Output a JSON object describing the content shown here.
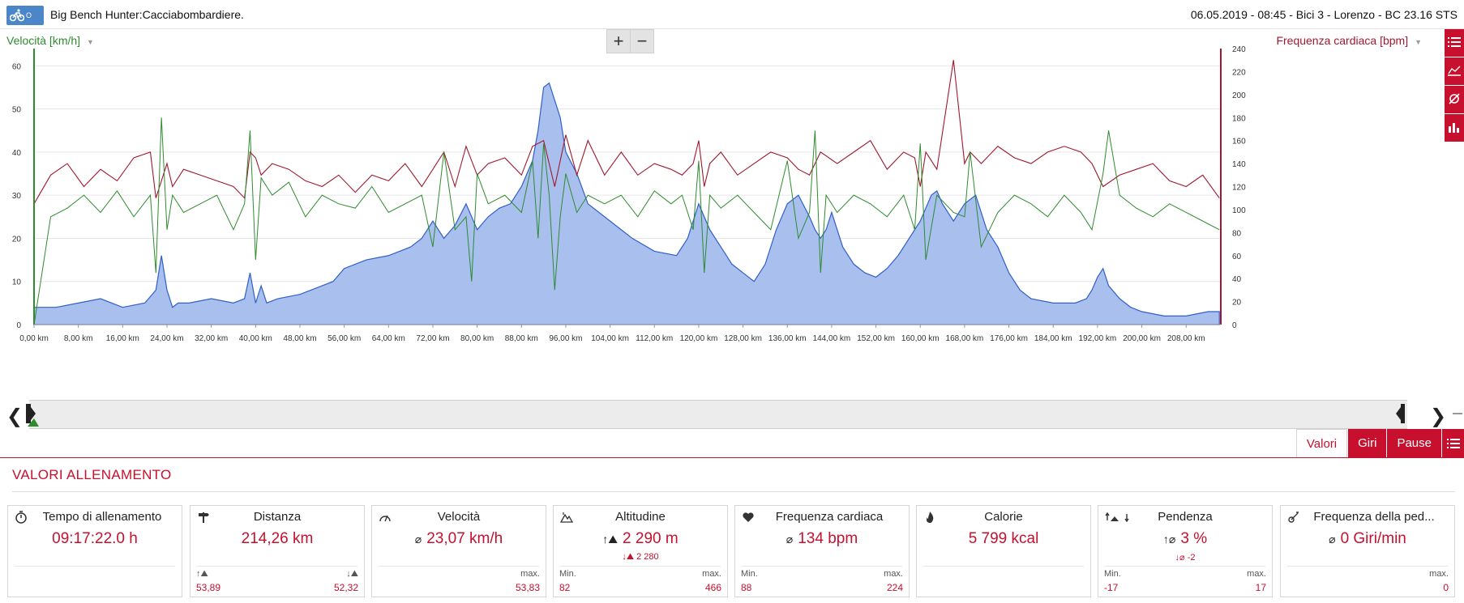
{
  "header": {
    "logo_text": "O RDB",
    "title": "Big Bench Hunter:Cacciabombardiere.",
    "meta": "06.05.2019  -  08:45  -  Bici 3  -  Lorenzo  -  BC 23.16 STS"
  },
  "chart": {
    "left_axis_title": "Velocità [km/h]",
    "right_axis_title": "Frequenza cardiaca [bpm]",
    "zoom_in": "+",
    "zoom_out": "−"
  },
  "chart_data": {
    "type": "line",
    "title": "",
    "xlabel": "",
    "x_unit": "km",
    "x_ticks": [
      "0,00 km",
      "8,00 km",
      "16,00 km",
      "24,00 km",
      "32,00 km",
      "40,00 km",
      "48,00 km",
      "56,00 km",
      "64,00 km",
      "72,00 km",
      "80,00 km",
      "88,00 km",
      "96,00 km",
      "104,00 km",
      "112,00 km",
      "120,00 km",
      "128,00 km",
      "136,00 km",
      "144,00 km",
      "152,00 km",
      "160,00 km",
      "168,00 km",
      "176,00 km",
      "184,00 km",
      "192,00 km",
      "200,00 km",
      "208,00 km"
    ],
    "xlim": [
      0,
      214.26
    ],
    "left_yticks": [
      "0",
      "10",
      "20",
      "30",
      "40",
      "50",
      "60"
    ],
    "left_ylim": [
      0,
      64
    ],
    "right_yticks": [
      "0",
      "20",
      "40",
      "60",
      "80",
      "100",
      "120",
      "140",
      "160",
      "180",
      "200",
      "220",
      "240"
    ],
    "right_ylim": [
      0,
      240
    ],
    "grid": true,
    "colors": {
      "speed": "#2e8b2e",
      "heart_rate": "#a0182e",
      "altitude_fill": "#a9c0ef",
      "altitude_line": "#2f5fc7"
    },
    "series": [
      {
        "name": "Velocità",
        "axis": "left",
        "x": [
          0,
          3,
          6,
          9,
          12,
          15,
          18,
          21,
          22,
          23,
          24,
          25,
          27,
          30,
          33,
          36,
          38,
          39,
          40,
          41,
          43,
          46,
          49,
          52,
          55,
          58,
          61,
          64,
          67,
          70,
          72,
          74,
          76,
          78,
          79,
          80,
          82,
          85,
          88,
          90,
          91,
          92,
          93,
          94,
          95,
          96,
          98,
          100,
          103,
          106,
          109,
          112,
          115,
          117,
          119,
          120,
          121,
          122,
          124,
          127,
          130,
          133,
          136,
          138,
          140,
          141,
          142,
          143,
          145,
          148,
          151,
          154,
          157,
          159,
          160,
          161,
          163,
          166,
          168,
          169,
          171,
          174,
          177,
          180,
          183,
          186,
          189,
          191,
          193,
          194,
          196,
          199,
          202,
          205,
          208,
          211,
          214
        ],
        "values": [
          0,
          25,
          27,
          30,
          26,
          31,
          25,
          30,
          12,
          48,
          22,
          30,
          26,
          28,
          30,
          22,
          28,
          45,
          15,
          34,
          30,
          33,
          25,
          30,
          28,
          27,
          32,
          26,
          28,
          30,
          18,
          40,
          22,
          25,
          10,
          35,
          28,
          30,
          26,
          38,
          20,
          42,
          30,
          8,
          25,
          35,
          26,
          30,
          28,
          30,
          25,
          31,
          28,
          30,
          22,
          38,
          12,
          30,
          27,
          30,
          26,
          22,
          38,
          20,
          26,
          45,
          12,
          30,
          26,
          30,
          28,
          25,
          30,
          22,
          42,
          15,
          30,
          26,
          25,
          40,
          18,
          26,
          30,
          28,
          25,
          30,
          26,
          22,
          35,
          45,
          30,
          27,
          25,
          28,
          26,
          24,
          22
        ]
      },
      {
        "name": "Frequenza cardiaca",
        "axis": "right",
        "x": [
          0,
          3,
          6,
          9,
          12,
          15,
          18,
          21,
          22,
          24,
          25,
          27,
          30,
          33,
          36,
          38,
          39,
          40,
          41,
          43,
          46,
          49,
          52,
          55,
          58,
          61,
          64,
          67,
          70,
          72,
          74,
          76,
          78,
          80,
          82,
          85,
          88,
          90,
          92,
          94,
          96,
          98,
          100,
          103,
          106,
          109,
          112,
          115,
          117,
          119,
          120,
          121,
          122,
          124,
          127,
          130,
          133,
          136,
          138,
          140,
          142,
          145,
          148,
          151,
          154,
          157,
          159,
          160,
          161,
          163,
          166,
          168,
          169,
          171,
          174,
          177,
          180,
          183,
          186,
          189,
          191,
          193,
          196,
          199,
          202,
          205,
          208,
          211,
          214
        ],
        "values": [
          105,
          130,
          140,
          120,
          135,
          125,
          145,
          150,
          110,
          140,
          120,
          135,
          130,
          125,
          120,
          110,
          150,
          145,
          130,
          140,
          135,
          125,
          120,
          130,
          115,
          130,
          125,
          140,
          120,
          135,
          150,
          120,
          155,
          130,
          140,
          145,
          130,
          155,
          160,
          120,
          165,
          130,
          160,
          130,
          150,
          130,
          140,
          135,
          130,
          140,
          160,
          120,
          140,
          150,
          130,
          140,
          150,
          145,
          135,
          130,
          150,
          140,
          150,
          160,
          135,
          150,
          145,
          120,
          150,
          135,
          230,
          140,
          150,
          140,
          155,
          145,
          140,
          150,
          155,
          150,
          140,
          120,
          130,
          135,
          140,
          125,
          120,
          130,
          110
        ]
      },
      {
        "name": "Altitudine",
        "axis": "left_scaled",
        "x": [
          0,
          4,
          8,
          12,
          16,
          20,
          22,
          23,
          24,
          25,
          26,
          28,
          32,
          36,
          38,
          39,
          40,
          41,
          42,
          44,
          48,
          52,
          54,
          56,
          60,
          64,
          68,
          70,
          72,
          74,
          76,
          78,
          80,
          82,
          84,
          86,
          88,
          90,
          91,
          92,
          93,
          94,
          95,
          96,
          98,
          100,
          104,
          108,
          112,
          116,
          118,
          120,
          122,
          124,
          126,
          128,
          130,
          132,
          134,
          136,
          138,
          140,
          141,
          142,
          143,
          144,
          146,
          148,
          150,
          152,
          154,
          156,
          158,
          160,
          162,
          163,
          164,
          166,
          168,
          170,
          172,
          174,
          176,
          178,
          180,
          184,
          188,
          190,
          191,
          192,
          193,
          194,
          196,
          198,
          200,
          204,
          208,
          212,
          214
        ],
        "values": [
          4,
          4,
          5,
          6,
          4,
          5,
          8,
          16,
          8,
          4,
          5,
          5,
          6,
          5,
          6,
          12,
          5,
          9,
          5,
          6,
          7,
          9,
          10,
          13,
          15,
          16,
          18,
          20,
          24,
          20,
          23,
          28,
          22,
          25,
          27,
          28,
          32,
          38,
          45,
          55,
          56,
          52,
          48,
          40,
          35,
          28,
          24,
          20,
          17,
          16,
          20,
          28,
          22,
          18,
          14,
          12,
          10,
          14,
          22,
          28,
          30,
          25,
          22,
          20,
          22,
          26,
          18,
          14,
          12,
          11,
          13,
          16,
          20,
          24,
          30,
          31,
          28,
          24,
          28,
          30,
          22,
          18,
          12,
          8,
          6,
          5,
          5,
          6,
          8,
          11,
          13,
          9,
          6,
          4,
          3,
          2,
          2,
          3,
          3
        ]
      }
    ]
  },
  "scrubber": {
    "left_arrow": "❮",
    "right_arrow": "❯"
  },
  "tabs": [
    {
      "label": "Valori",
      "active": true
    },
    {
      "label": "Giri",
      "active": false
    },
    {
      "label": "Pause",
      "active": false
    }
  ],
  "section": {
    "title": "VALORI ALLENAMENTO"
  },
  "cards": [
    {
      "label": "Tempo di allenamento",
      "icon": "stopwatch-icon",
      "value": "09:17:22.0 h",
      "sub": "",
      "foot_left_label": "",
      "foot_right_label": "",
      "foot_left": "",
      "foot_right": ""
    },
    {
      "label": "Distanza",
      "icon": "signpost-icon",
      "value": "214,26 km",
      "sub": "",
      "foot_left_label": "↑⛰",
      "foot_right_label": "↓⛰",
      "foot_left": "53,89",
      "foot_right": "52,32"
    },
    {
      "label": "Velocità",
      "icon": "speedometer-icon",
      "value": "23,07 km/h",
      "avg": "⌀",
      "sub": "",
      "foot_left_label": "",
      "foot_right_label": "max.",
      "foot_left": "",
      "foot_right": "53,83"
    },
    {
      "label": "Altitudine",
      "icon": "mountain-icon",
      "value": "2 290 m",
      "avg": "↑⛰",
      "sub": "↓⛰  2 280",
      "foot_left_label": "Min.",
      "foot_right_label": "max.",
      "foot_left": "82",
      "foot_right": "466"
    },
    {
      "label": "Frequenza cardiaca",
      "icon": "heart-icon",
      "value": "134 bpm",
      "avg": "⌀",
      "sub": "",
      "foot_left_label": "Min.",
      "foot_right_label": "max.",
      "foot_left": "88",
      "foot_right": "224"
    },
    {
      "label": "Calorie",
      "icon": "flame-icon",
      "value": "5 799 kcal",
      "sub": "",
      "foot_left_label": "",
      "foot_right_label": "",
      "foot_left": "",
      "foot_right": ""
    },
    {
      "label": "Pendenza",
      "icon": "slope-icon",
      "value": "3 %",
      "avg": "↑⌀",
      "sub": "↓⌀   -2",
      "foot_left_label": "Min.",
      "foot_right_label": "max.",
      "foot_left": "-17",
      "foot_right": "17"
    },
    {
      "label": "Frequenza della ped...",
      "icon": "cadence-icon",
      "value": "0 Giri/min",
      "avg": "⌀",
      "sub": "",
      "foot_left_label": "",
      "foot_right_label": "max.",
      "foot_left": "",
      "foot_right": "0"
    }
  ]
}
